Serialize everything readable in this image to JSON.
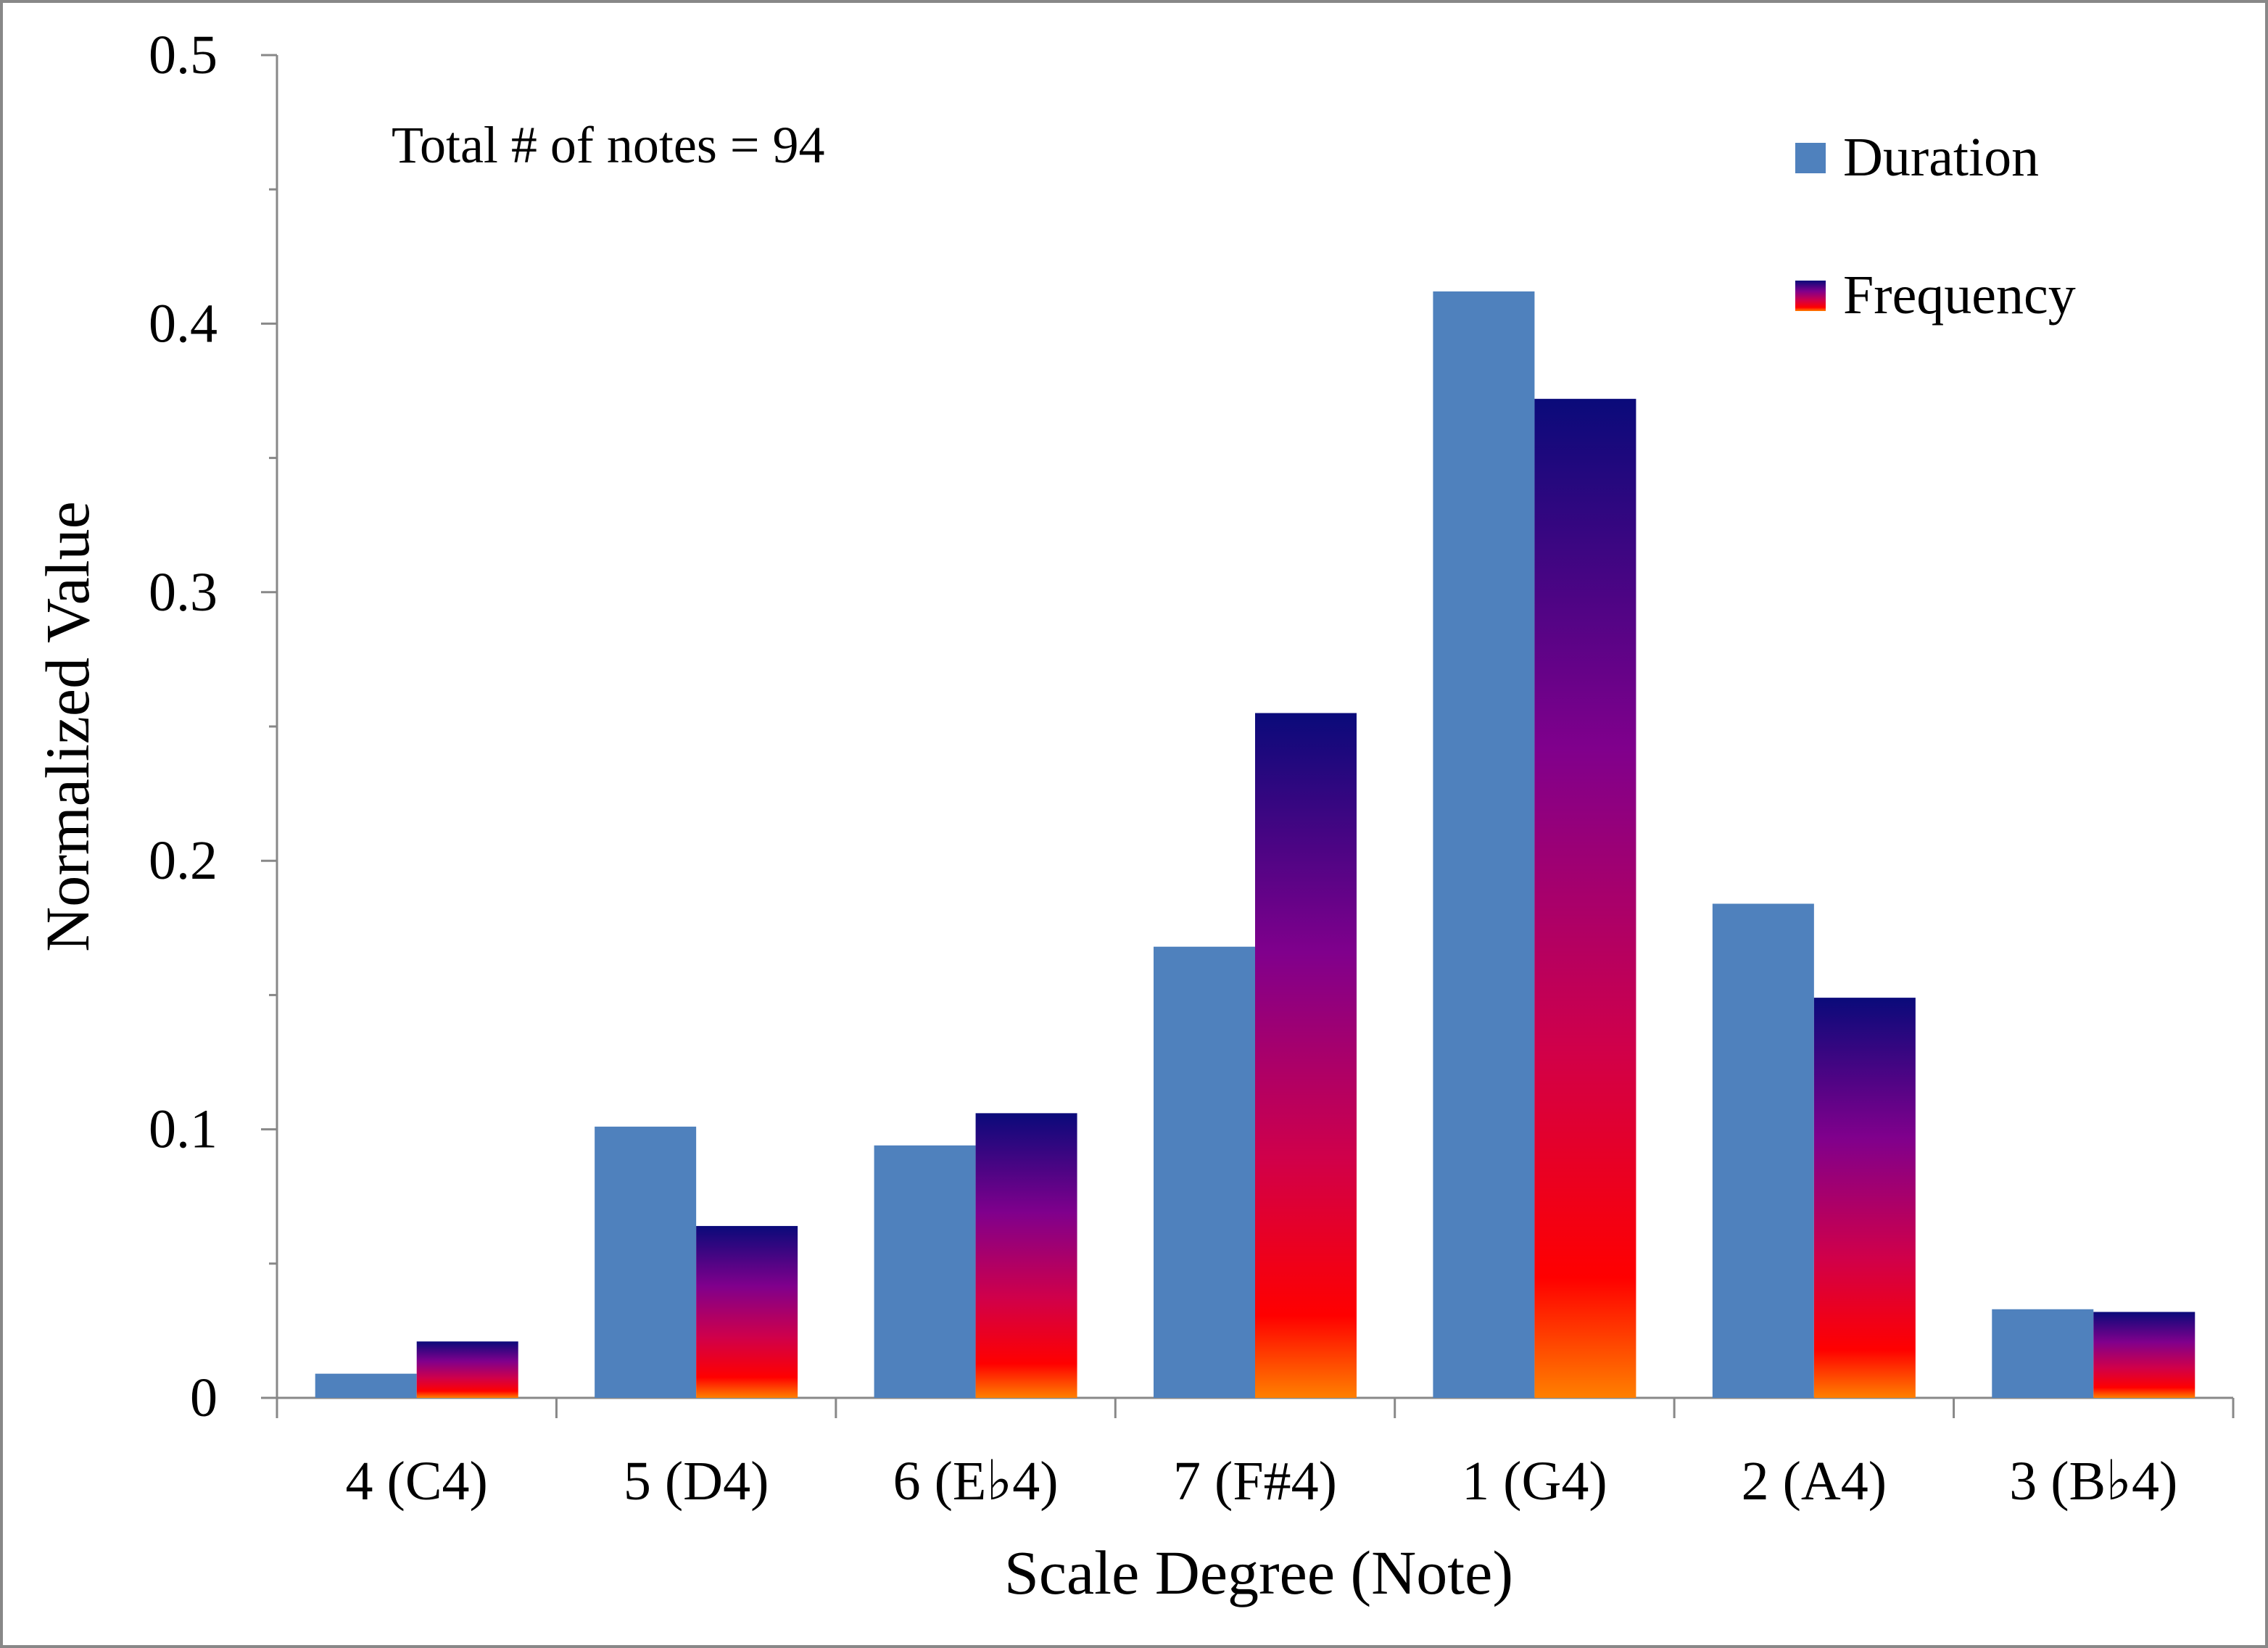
{
  "chart_data": {
    "type": "bar",
    "title": "",
    "annotation": "Total # of notes = 94",
    "xlabel": "Scale Degree (Note)",
    "ylabel": "Normalized Value",
    "ylim": [
      0,
      0.5
    ],
    "yticks": [
      "0",
      "0.1",
      "0.2",
      "0.3",
      "0.4",
      "0.5"
    ],
    "ytick_values": [
      0,
      0.1,
      0.2,
      0.3,
      0.4,
      0.5
    ],
    "categories": [
      "4 (C4)",
      "5 (D4)",
      "6 (E♭4)",
      "7 (F#4)",
      "1 (G4)",
      "2 (A4)",
      "3 (B♭4)"
    ],
    "series": [
      {
        "name": "Duration",
        "values": [
          0.009,
          0.101,
          0.094,
          0.168,
          0.412,
          0.184,
          0.033
        ]
      },
      {
        "name": "Frequency",
        "values": [
          0.021,
          0.064,
          0.106,
          0.255,
          0.372,
          0.149,
          0.032
        ]
      }
    ],
    "legend_position": "top-right",
    "grid": false
  },
  "colors": {
    "duration": "#4f81bd",
    "frequency_gradient": [
      "#0a0a7a",
      "#80008c",
      "#d0004a",
      "#ff0000",
      "#ff8000"
    ],
    "axis": "#888888"
  }
}
